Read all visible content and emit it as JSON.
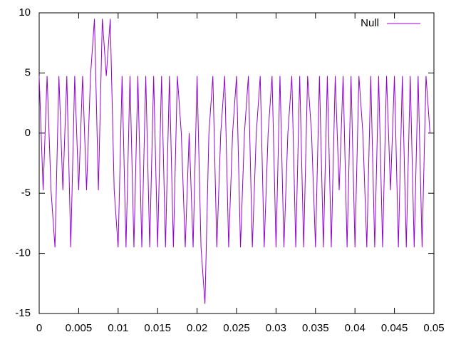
{
  "chart_data": {
    "type": "line",
    "x": [
      0,
      0.0005,
      0.001,
      0.0015,
      0.002,
      0.0025,
      0.003,
      0.0035,
      0.004,
      0.0045,
      0.005,
      0.0055,
      0.006,
      0.0065,
      0.007,
      0.0075,
      0.008,
      0.0085,
      0.009,
      0.0095,
      0.01,
      0.0105,
      0.011,
      0.0115,
      0.012,
      0.0125,
      0.013,
      0.0135,
      0.014,
      0.0145,
      0.015,
      0.0155,
      0.016,
      0.0165,
      0.017,
      0.0175,
      0.018,
      0.0185,
      0.019,
      0.0195,
      0.02,
      0.0205,
      0.021,
      0.0215,
      0.022,
      0.0225,
      0.023,
      0.0235,
      0.024,
      0.0245,
      0.025,
      0.0255,
      0.026,
      0.0265,
      0.027,
      0.0275,
      0.028,
      0.0285,
      0.029,
      0.0295,
      0.03,
      0.0305,
      0.031,
      0.0315,
      0.032,
      0.0325,
      0.033,
      0.0335,
      0.034,
      0.0345,
      0.035,
      0.0355,
      0.036,
      0.0365,
      0.037,
      0.0375,
      0.038,
      0.0385,
      0.039,
      0.0395,
      0.04,
      0.0405,
      0.041,
      0.0415,
      0.042,
      0.0425,
      0.043,
      0.0435,
      0.044,
      0.0445,
      0.045,
      0.0455,
      0.046,
      0.0465,
      0.047,
      0.0475,
      0.048,
      0.0485,
      0.049,
      0.0495
    ],
    "series": [
      {
        "name": "Null",
        "color": "#9400d3",
        "values": [
          4.75,
          -4.75,
          4.75,
          -4.75,
          -9.5,
          4.75,
          -4.75,
          4.75,
          -9.5,
          4.75,
          -4.75,
          4.75,
          -4.75,
          4.75,
          9.5,
          -4.75,
          9.5,
          4.75,
          9.5,
          -4.75,
          -9.5,
          4.75,
          -9.5,
          4.75,
          -9.5,
          4.75,
          -9.5,
          4.75,
          -9.5,
          4.75,
          -9.5,
          4.75,
          -9.5,
          4.75,
          -9.5,
          4.75,
          0,
          -9.5,
          0,
          -9.5,
          4.75,
          -9.5,
          -14.2,
          0,
          4.75,
          -9.5,
          0,
          4.75,
          -9.5,
          0,
          4.75,
          -9.5,
          0,
          4.75,
          -9.5,
          0,
          4.75,
          -9.5,
          0,
          4.75,
          -9.5,
          4.75,
          -9.5,
          0,
          4.75,
          -9.5,
          4.75,
          -9.5,
          4.75,
          0,
          -9.5,
          4.75,
          -9.5,
          4.75,
          -9.5,
          4.75,
          -4.75,
          4.75,
          -9.5,
          4.75,
          -9.5,
          4.75,
          0,
          -9.5,
          4.75,
          -9.5,
          4.75,
          -9.5,
          4.75,
          -4.75,
          4.75,
          -9.5,
          4.75,
          -9.5,
          4.75,
          -9.5,
          4.75,
          -9.5,
          4.75,
          0
        ]
      }
    ],
    "xlim": [
      0,
      0.05
    ],
    "xticks": [
      0,
      0.005,
      0.01,
      0.015,
      0.02,
      0.025,
      0.03,
      0.035,
      0.04,
      0.045,
      0.05
    ],
    "ylim": [
      -15,
      10
    ],
    "yticks": [
      -15,
      -10,
      -5,
      0,
      5,
      10
    ],
    "legend": "top-right"
  }
}
